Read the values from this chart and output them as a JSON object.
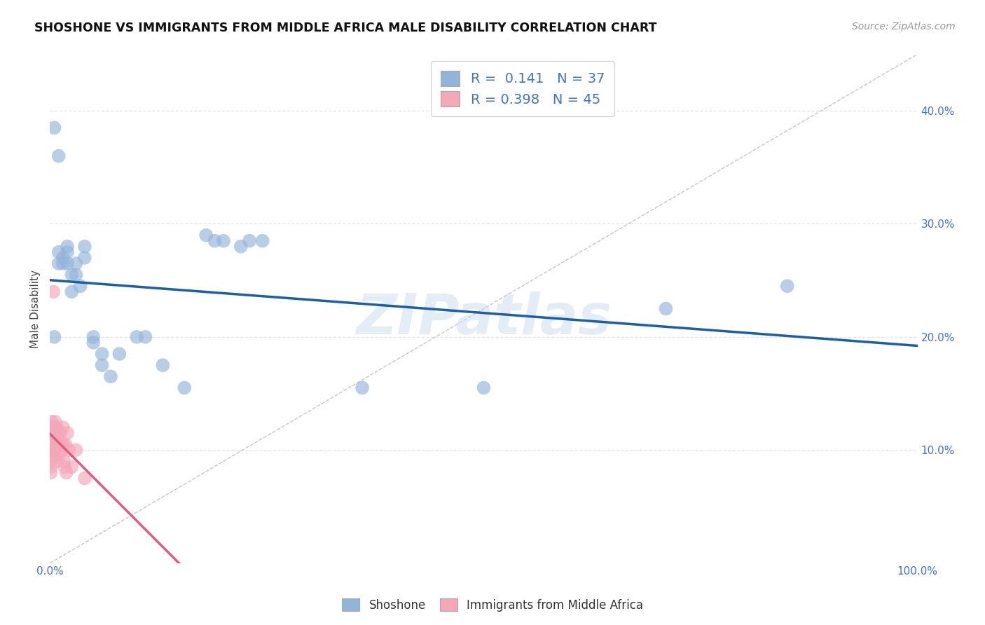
{
  "title": "SHOSHONE VS IMMIGRANTS FROM MIDDLE AFRICA MALE DISABILITY CORRELATION CHART",
  "source": "Source: ZipAtlas.com",
  "ylabel": "Male Disability",
  "xlim": [
    0.0,
    1.0
  ],
  "ylim": [
    0.0,
    0.45
  ],
  "shoshone_color": "#92b4d9",
  "immigrants_color": "#f4a7b9",
  "shoshone_line_color": "#1a5fa8",
  "immigrants_line_color": "#e05c80",
  "diagonal_color": "#ccbbbb",
  "R_shoshone": "0.141",
  "N_shoshone": "37",
  "R_immigrants": "0.398",
  "N_immigrants": "45",
  "shoshone_x": [
    0.005,
    0.01,
    0.01,
    0.01,
    0.015,
    0.015,
    0.02,
    0.02,
    0.02,
    0.025,
    0.025,
    0.03,
    0.03,
    0.035,
    0.04,
    0.04,
    0.05,
    0.05,
    0.06,
    0.06,
    0.07,
    0.08,
    0.1,
    0.11,
    0.13,
    0.155,
    0.18,
    0.19,
    0.2,
    0.22,
    0.23,
    0.245,
    0.36,
    0.5,
    0.71,
    0.85,
    0.005
  ],
  "shoshone_y": [
    0.385,
    0.36,
    0.275,
    0.265,
    0.27,
    0.265,
    0.28,
    0.275,
    0.265,
    0.255,
    0.24,
    0.265,
    0.255,
    0.245,
    0.28,
    0.27,
    0.2,
    0.195,
    0.185,
    0.175,
    0.165,
    0.185,
    0.2,
    0.2,
    0.175,
    0.155,
    0.29,
    0.285,
    0.285,
    0.28,
    0.285,
    0.285,
    0.155,
    0.155,
    0.225,
    0.245,
    0.2
  ],
  "immigrants_x": [
    0.001,
    0.001,
    0.001,
    0.001,
    0.001,
    0.001,
    0.001,
    0.001,
    0.002,
    0.002,
    0.002,
    0.002,
    0.003,
    0.003,
    0.003,
    0.003,
    0.004,
    0.004,
    0.005,
    0.005,
    0.005,
    0.006,
    0.006,
    0.007,
    0.007,
    0.008,
    0.008,
    0.009,
    0.01,
    0.01,
    0.01,
    0.012,
    0.013,
    0.014,
    0.015,
    0.015,
    0.016,
    0.017,
    0.018,
    0.019,
    0.02,
    0.022,
    0.025,
    0.03,
    0.04
  ],
  "immigrants_y": [
    0.12,
    0.115,
    0.11,
    0.105,
    0.1,
    0.09,
    0.085,
    0.08,
    0.125,
    0.12,
    0.11,
    0.1,
    0.115,
    0.105,
    0.1,
    0.095,
    0.24,
    0.115,
    0.12,
    0.115,
    0.1,
    0.125,
    0.11,
    0.115,
    0.105,
    0.12,
    0.09,
    0.105,
    0.115,
    0.105,
    0.095,
    0.115,
    0.105,
    0.1,
    0.12,
    0.105,
    0.09,
    0.085,
    0.105,
    0.08,
    0.115,
    0.1,
    0.085,
    0.1,
    0.075
  ],
  "watermark": "ZIPatlas",
  "legend_entries": [
    "Shoshone",
    "Immigrants from Middle Africa"
  ],
  "background_color": "#ffffff",
  "grid_color": "#dddddd",
  "tick_color": "#4472c4"
}
